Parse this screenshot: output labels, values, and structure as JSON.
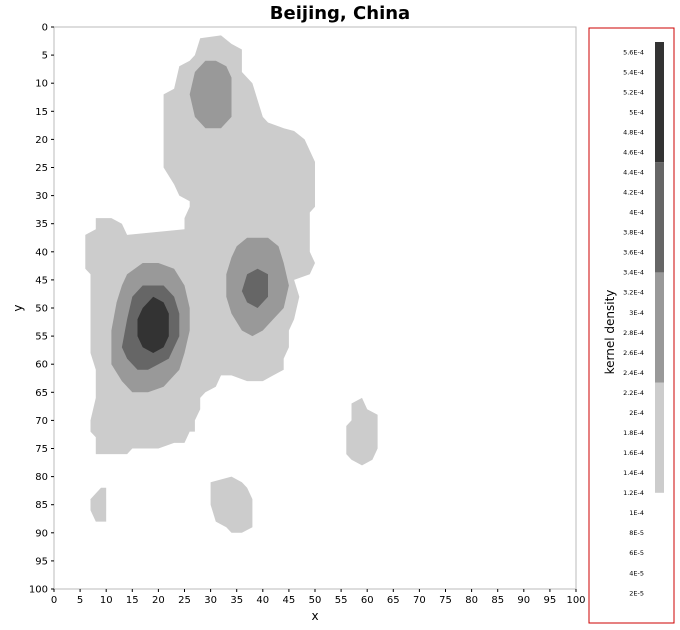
{
  "chart_data": {
    "type": "heatmap",
    "title": "Beijing, China",
    "xlabel": "x",
    "ylabel": "y",
    "xlim": [
      0,
      100
    ],
    "ylim": [
      0,
      100
    ],
    "y_axis_inverted": true,
    "x_ticks": [
      0,
      5,
      10,
      15,
      20,
      25,
      30,
      35,
      40,
      45,
      50,
      55,
      60,
      65,
      70,
      75,
      80,
      85,
      90,
      95,
      100
    ],
    "y_ticks": [
      0,
      5,
      10,
      15,
      20,
      25,
      30,
      35,
      40,
      45,
      50,
      55,
      60,
      65,
      70,
      75,
      80,
      85,
      90,
      95,
      100
    ],
    "grid": false,
    "colors": {
      "level1": "#cccccc",
      "level2": "#999999",
      "level3": "#666666",
      "level4": "#333333"
    },
    "contour_levels": [
      {
        "name": "level1",
        "min": 0.00012,
        "max": 0.00023
      },
      {
        "name": "level2",
        "min": 0.00023,
        "max": 0.00034
      },
      {
        "name": "level3",
        "min": 0.00034,
        "max": 0.00045
      },
      {
        "name": "level4",
        "min": 0.00045,
        "max": 0.00057
      }
    ],
    "regions": [
      {
        "level": "level1",
        "polygon": [
          [
            27,
            5
          ],
          [
            28,
            2
          ],
          [
            32,
            1.5
          ],
          [
            34,
            3
          ],
          [
            36,
            4
          ],
          [
            36,
            8
          ],
          [
            38,
            10
          ],
          [
            39,
            13
          ],
          [
            40,
            16
          ],
          [
            41,
            17
          ],
          [
            44,
            18
          ],
          [
            46,
            18.5
          ],
          [
            48,
            20
          ],
          [
            49,
            22
          ],
          [
            50,
            24
          ],
          [
            50,
            32
          ],
          [
            49,
            33
          ],
          [
            49,
            40
          ],
          [
            50,
            42
          ],
          [
            49,
            44
          ],
          [
            46,
            45
          ],
          [
            47,
            48
          ],
          [
            46,
            52
          ],
          [
            45,
            54
          ],
          [
            45,
            57
          ],
          [
            44,
            59
          ],
          [
            44,
            61
          ],
          [
            42,
            62
          ],
          [
            40,
            63
          ],
          [
            37,
            63
          ],
          [
            34,
            62
          ],
          [
            32,
            62
          ],
          [
            31,
            64
          ],
          [
            29,
            65
          ],
          [
            28,
            66
          ],
          [
            28,
            68
          ],
          [
            27,
            70
          ],
          [
            27,
            72
          ],
          [
            26,
            72
          ],
          [
            25,
            74
          ],
          [
            23,
            74
          ],
          [
            20,
            75
          ],
          [
            15,
            75
          ],
          [
            14,
            76
          ],
          [
            8,
            76
          ],
          [
            8,
            73
          ],
          [
            7,
            72
          ],
          [
            7,
            70
          ],
          [
            8,
            66
          ],
          [
            8,
            61
          ],
          [
            7,
            58
          ],
          [
            7,
            44
          ],
          [
            6,
            43
          ],
          [
            6,
            37
          ],
          [
            8,
            36
          ],
          [
            8,
            34
          ],
          [
            11,
            34
          ],
          [
            13,
            35
          ],
          [
            14,
            37
          ],
          [
            25,
            36
          ],
          [
            25,
            34
          ],
          [
            26,
            32
          ],
          [
            26,
            31
          ],
          [
            24,
            30
          ],
          [
            23,
            28
          ],
          [
            21,
            25
          ],
          [
            21,
            12
          ],
          [
            23,
            11
          ],
          [
            24,
            7
          ],
          [
            26,
            6
          ]
        ]
      },
      {
        "level": "level1",
        "polygon": [
          [
            57,
            70
          ],
          [
            57,
            67
          ],
          [
            59,
            66
          ],
          [
            60,
            68
          ],
          [
            62,
            69
          ],
          [
            62,
            75
          ],
          [
            61,
            77
          ],
          [
            59,
            78
          ],
          [
            57,
            77
          ],
          [
            56,
            76
          ],
          [
            56,
            71
          ]
        ]
      },
      {
        "level": "level1",
        "polygon": [
          [
            30,
            81
          ],
          [
            34,
            80
          ],
          [
            36,
            81
          ],
          [
            37,
            82
          ],
          [
            38,
            84
          ],
          [
            38,
            89
          ],
          [
            36,
            90
          ],
          [
            34,
            90
          ],
          [
            33,
            89
          ],
          [
            31,
            88
          ],
          [
            30,
            85
          ]
        ]
      },
      {
        "level": "level1",
        "polygon": [
          [
            9,
            82
          ],
          [
            10,
            82
          ],
          [
            10,
            86
          ],
          [
            10,
            88
          ],
          [
            8,
            88
          ],
          [
            7,
            86
          ],
          [
            7,
            84
          ]
        ]
      },
      {
        "level": "level2",
        "polygon": [
          [
            27,
            8
          ],
          [
            29,
            6
          ],
          [
            31,
            6
          ],
          [
            33,
            7
          ],
          [
            34,
            9
          ],
          [
            34,
            12
          ],
          [
            34,
            16
          ],
          [
            32,
            18
          ],
          [
            29,
            18
          ],
          [
            27,
            16
          ],
          [
            26,
            12
          ]
        ]
      },
      {
        "level": "level2",
        "polygon": [
          [
            35,
            39
          ],
          [
            37,
            37.5
          ],
          [
            41,
            37.5
          ],
          [
            43,
            39
          ],
          [
            44,
            42
          ],
          [
            45,
            46
          ],
          [
            44,
            50
          ],
          [
            42,
            52
          ],
          [
            40,
            54
          ],
          [
            38,
            55
          ],
          [
            36,
            54
          ],
          [
            34,
            51
          ],
          [
            33,
            48
          ],
          [
            33,
            44
          ],
          [
            34,
            41
          ]
        ]
      },
      {
        "level": "level2",
        "polygon": [
          [
            14,
            44
          ],
          [
            17,
            42
          ],
          [
            20,
            42
          ],
          [
            23,
            43
          ],
          [
            25,
            46
          ],
          [
            26,
            50
          ],
          [
            26,
            54
          ],
          [
            25,
            58
          ],
          [
            24,
            61
          ],
          [
            21,
            64
          ],
          [
            18,
            65
          ],
          [
            15,
            65
          ],
          [
            13,
            63
          ],
          [
            11,
            60
          ],
          [
            11,
            54
          ],
          [
            12,
            49
          ],
          [
            13,
            46
          ]
        ]
      },
      {
        "level": "level3",
        "polygon": [
          [
            15,
            48
          ],
          [
            17,
            46
          ],
          [
            21,
            46
          ],
          [
            23,
            48
          ],
          [
            24,
            51
          ],
          [
            24,
            55
          ],
          [
            23,
            57
          ],
          [
            22,
            59
          ],
          [
            20,
            60
          ],
          [
            18,
            61
          ],
          [
            16,
            61
          ],
          [
            14,
            59
          ],
          [
            13,
            57
          ],
          [
            14,
            52
          ]
        ]
      },
      {
        "level": "level3",
        "polygon": [
          [
            37,
            44
          ],
          [
            39,
            43
          ],
          [
            41,
            44
          ],
          [
            41,
            48
          ],
          [
            39,
            50
          ],
          [
            37,
            49
          ],
          [
            36,
            47
          ]
        ]
      },
      {
        "level": "level4",
        "polygon": [
          [
            17,
            50
          ],
          [
            19,
            48
          ],
          [
            21,
            49
          ],
          [
            22,
            51
          ],
          [
            22,
            55
          ],
          [
            21,
            57
          ],
          [
            19,
            58
          ],
          [
            17,
            57
          ],
          [
            16,
            55
          ],
          [
            16,
            52
          ]
        ]
      }
    ],
    "legend": {
      "label": "kernel density",
      "placement": "right",
      "ticks": [
        "5.6E-4",
        "5.4E-4",
        "5.2E-4",
        "5E-4",
        "4.8E-4",
        "4.6E-4",
        "4.4E-4",
        "4.2E-4",
        "4E-4",
        "3.8E-4",
        "3.6E-4",
        "3.4E-4",
        "3.2E-4",
        "3E-4",
        "2.8E-4",
        "2.6E-4",
        "2.4E-4",
        "2.2E-4",
        "2E-4",
        "1.8E-4",
        "1.6E-4",
        "1.4E-4",
        "1.2E-4",
        "1E-4",
        "8E-5",
        "6E-5",
        "4E-5",
        "2E-5"
      ],
      "tick_values": [
        0.00056,
        0.00054,
        0.00052,
        0.0005,
        0.00048,
        0.00046,
        0.00044,
        0.00042,
        0.0004,
        0.00038,
        0.00036,
        0.00034,
        0.00032,
        0.0003,
        0.00028,
        0.00026,
        0.00024,
        0.00022,
        0.0002,
        0.00018,
        0.00016,
        0.00014,
        0.00012,
        0.0001,
        8e-05,
        6e-05,
        4e-05,
        2e-05
      ],
      "bar_range": [
        0.000115,
        0.000575
      ],
      "border_color": "#cc0000"
    }
  }
}
